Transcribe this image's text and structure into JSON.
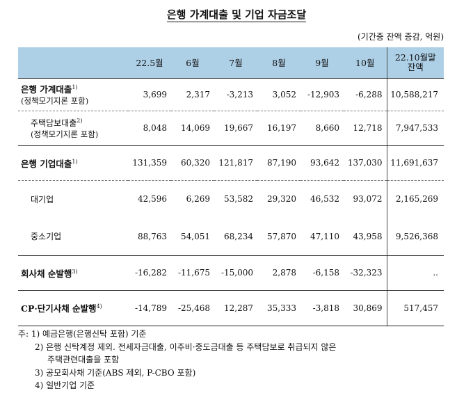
{
  "title": "은행 가계대출 및 기업 자금조달",
  "unit": "(기간중 잔액 증감, 억원)",
  "header": [
    "22.5월",
    "6월",
    "7월",
    "8월",
    "9월",
    "10월"
  ],
  "header_balance": [
    "22.10월말",
    "잔액"
  ],
  "rows": [
    {
      "label": "은행 가계대출",
      "sup": "1)",
      "sub": "(정책모기지론 포함)",
      "values": [
        "3,699",
        "2,317",
        "-3,213",
        "3,052",
        "-12,903",
        "-6,288"
      ],
      "balance": "10,588,217"
    },
    {
      "label": "주택담보대출",
      "sup": "2)",
      "sub": "(정책모기지론 포함)",
      "values": [
        "8,048",
        "14,069",
        "19,667",
        "16,197",
        "8,660",
        "12,718"
      ],
      "balance": "7,947,533"
    },
    {
      "label": "은행 기업대출",
      "sup": "1)",
      "values": [
        "131,359",
        "60,320",
        "121,817",
        "87,190",
        "93,642",
        "137,030"
      ],
      "balance": "11,691,637"
    },
    {
      "label": "대기업",
      "values": [
        "42,596",
        "6,269",
        "53,582",
        "29,320",
        "46,532",
        "93,072"
      ],
      "balance": "2,165,269"
    },
    {
      "label": "중소기업",
      "values": [
        "88,763",
        "54,051",
        "68,234",
        "57,870",
        "47,110",
        "43,958"
      ],
      "balance": "9,526,368"
    },
    {
      "label": "회사채 순발행",
      "sup": "3)",
      "values": [
        "-16,282",
        "-11,675",
        "-15,000",
        "2,878",
        "-6,158",
        "-32,323"
      ],
      "balance": ".."
    },
    {
      "label": "CP·단기사채 순발행",
      "sup": "4)",
      "values": [
        "-14,789",
        "-25,468",
        "12,287",
        "35,333",
        "-3,818",
        "30,869"
      ],
      "balance": "517,457"
    }
  ],
  "notes": [
    "주: 1) 예금은행(은행신탁 포함) 기준",
    "2) 은행 신탁계정 제외. 전세자금대출, 이주비·중도금대출 등 주택담보로 취급되지 않은",
    "주택관련대출을 포함",
    "3) 공모회사채 기준(ABS 제외, P-CBO 포함)",
    "4) 일반기업 기준"
  ]
}
